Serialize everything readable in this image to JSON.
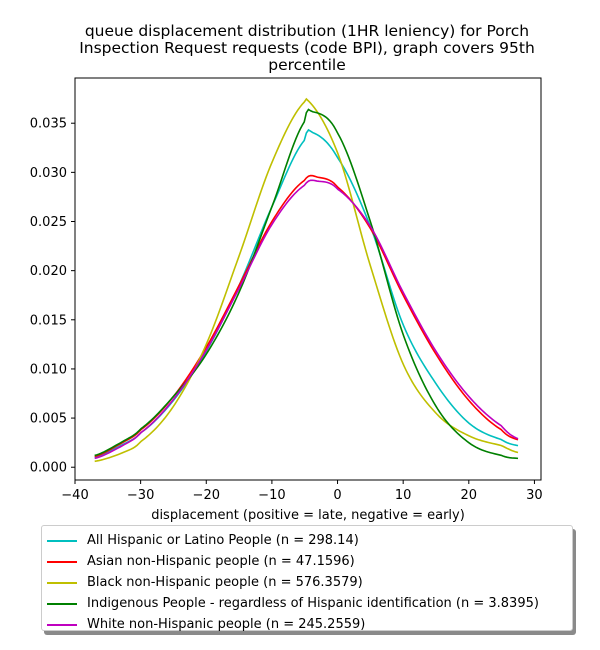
{
  "chart_data": {
    "type": "line",
    "title": [
      "queue displacement distribution (1HR leniency) for Porch",
      "Inspection Request  requests (code BPI), graph covers 95th",
      "percentile"
    ],
    "xlabel": "displacement (positive = late, negative = early)",
    "ylabel": "",
    "xlim": [
      -40,
      31
    ],
    "ylim": [
      -0.0013,
      0.0396
    ],
    "xticks": [
      -40,
      -30,
      -20,
      -10,
      0,
      10,
      20,
      30
    ],
    "xtick_labels": [
      "−40",
      "−30",
      "−20",
      "−10",
      "0",
      "10",
      "20",
      "30"
    ],
    "yticks": [
      0.0,
      0.005,
      0.01,
      0.015,
      0.02,
      0.025,
      0.03,
      0.035
    ],
    "ytick_labels": [
      "0.000",
      "0.005",
      "0.010",
      "0.015",
      "0.020",
      "0.025",
      "0.030",
      "0.035"
    ],
    "grid": false,
    "legend_position": "below",
    "x_range": [
      -37,
      27.5
    ],
    "series": [
      {
        "name": "All Hispanic or Latino People (n = 298.14)",
        "color": "#00bfbf",
        "x": [
          -37,
          -33,
          -30,
          -25,
          -20,
          -15,
          -10,
          -5,
          -4,
          0,
          5,
          10,
          15,
          20,
          25,
          27.5
        ],
        "y": [
          0.001,
          0.0022,
          0.0035,
          0.0068,
          0.0118,
          0.0185,
          0.0265,
          0.0333,
          0.0341,
          0.0315,
          0.0245,
          0.0145,
          0.0085,
          0.0045,
          0.0028,
          0.0022
        ]
      },
      {
        "name": "Asian non-Hispanic people (n = 47.1596)",
        "color": "#ff0000",
        "x": [
          -37,
          -33,
          -30,
          -25,
          -20,
          -15,
          -10,
          -5,
          -3,
          0,
          5,
          10,
          15,
          20,
          25,
          27.5
        ],
        "y": [
          0.0011,
          0.0024,
          0.0038,
          0.0072,
          0.0122,
          0.0185,
          0.025,
          0.0292,
          0.0295,
          0.0285,
          0.0243,
          0.0175,
          0.0115,
          0.0068,
          0.0038,
          0.0028
        ]
      },
      {
        "name": "Black non-Hispanic people (n = 576.3579)",
        "color": "#bfbf00",
        "x": [
          -37,
          -33,
          -30,
          -25,
          -20,
          -15,
          -10,
          -5,
          -5,
          0,
          5,
          10,
          15,
          20,
          25,
          27.5
        ],
        "y": [
          0.0006,
          0.0014,
          0.0026,
          0.0062,
          0.0125,
          0.0215,
          0.031,
          0.0372,
          0.0376,
          0.032,
          0.0205,
          0.0105,
          0.0055,
          0.0032,
          0.0022,
          0.0015
        ]
      },
      {
        "name": "Indigenous People - regardless of Hispanic identification (n = 3.8395)",
        "color": "#008000",
        "x": [
          -37,
          -33,
          -30,
          -25,
          -20,
          -15,
          -10,
          -5,
          -4,
          0,
          5,
          10,
          15,
          20,
          25,
          27.5
        ],
        "y": [
          0.0012,
          0.0025,
          0.0039,
          0.0072,
          0.0115,
          0.0178,
          0.0265,
          0.0352,
          0.0362,
          0.034,
          0.025,
          0.0135,
          0.0062,
          0.0025,
          0.0012,
          0.0009
        ]
      },
      {
        "name": "White non-Hispanic people (n = 245.2559)",
        "color": "#bf00bf",
        "x": [
          -37,
          -33,
          -30,
          -25,
          -20,
          -15,
          -10,
          -5,
          -3,
          0,
          5,
          10,
          15,
          20,
          25,
          27.5
        ],
        "y": [
          0.0009,
          0.0021,
          0.0035,
          0.0069,
          0.0119,
          0.0182,
          0.0247,
          0.0287,
          0.0291,
          0.0283,
          0.0245,
          0.0178,
          0.0118,
          0.0072,
          0.0042,
          0.0029
        ]
      }
    ]
  }
}
